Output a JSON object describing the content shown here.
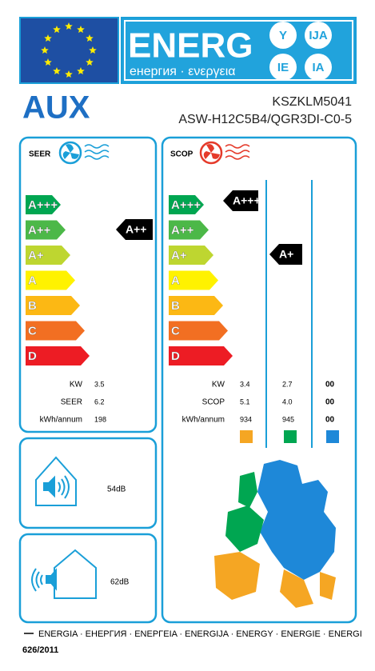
{
  "header": {
    "title": "ENERG",
    "subtitle": "енергия · ενεργεια",
    "badges": [
      "Y",
      "IJA",
      "IE",
      "IA"
    ]
  },
  "brand": {
    "name": "AUX",
    "models": [
      "KSZKLM5041",
      "ASW-H12C5B4/QGR3DI-C0-5"
    ]
  },
  "seer": {
    "title": "SEER",
    "classes": [
      "A+++",
      "A++",
      "A+",
      "A",
      "B",
      "C",
      "D"
    ],
    "indicator": "A++",
    "rows": [
      {
        "label": "KW",
        "values": [
          "3.5"
        ]
      },
      {
        "label": "SEER",
        "values": [
          "6.2"
        ]
      },
      {
        "label": "kWh/annum",
        "values": [
          "198"
        ]
      }
    ]
  },
  "scop": {
    "title": "SCOP",
    "classes": [
      "A+++",
      "A++",
      "A+",
      "A",
      "B",
      "C",
      "D"
    ],
    "indicators": [
      "A+++",
      "A+"
    ],
    "rows": [
      {
        "label": "KW",
        "values": [
          "3.4",
          "2.7",
          "00"
        ]
      },
      {
        "label": "SCOP",
        "values": [
          "5.1",
          "4.0",
          "00"
        ]
      },
      {
        "label": "kWh/annum",
        "values": [
          "934",
          "945",
          "00"
        ]
      }
    ]
  },
  "noise": {
    "indoor": "54dB",
    "outdoor": "62dB"
  },
  "footer": {
    "languages": "ENERGIA · ЕНЕРГИЯ · ΕΝΕΡΓΕΙΑ · ENERGIJA · ENERGY · ENERGIE · ENERGI",
    "regulation": "626/2011"
  }
}
